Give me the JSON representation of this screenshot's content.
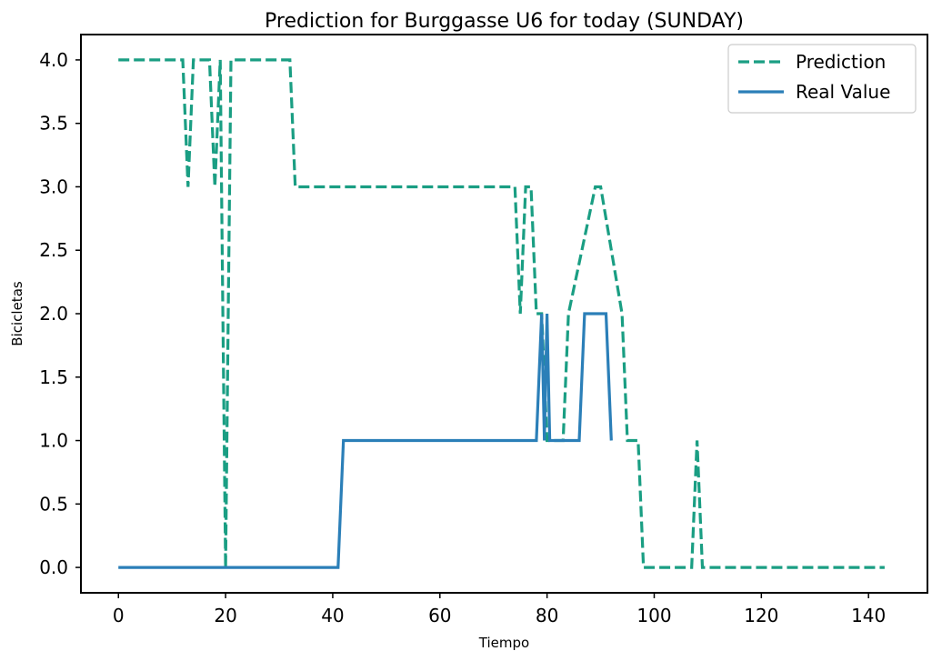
{
  "chart_data": {
    "type": "line",
    "title": "Prediction for Burggasse U6 for today (SUNDAY)",
    "xlabel": "Tiempo",
    "ylabel": "Bicicletas",
    "xlim": [
      -7,
      151
    ],
    "ylim": [
      -0.2,
      4.2
    ],
    "xticks": [
      0,
      20,
      40,
      60,
      80,
      100,
      120,
      140
    ],
    "yticks": [
      0.0,
      0.5,
      1.0,
      1.5,
      2.0,
      2.5,
      3.0,
      3.5,
      4.0
    ],
    "grid": false,
    "legend": "top-right",
    "series": [
      {
        "name": "Prediction",
        "color": "#1a9e83",
        "style": "dashed",
        "x": [
          0,
          12,
          13,
          14,
          17,
          18,
          19,
          19.5,
          20,
          20.5,
          21,
          32,
          33,
          74,
          75,
          76,
          77,
          78,
          79,
          80,
          83,
          84,
          89,
          90,
          94,
          95,
          96,
          97,
          98,
          107,
          108,
          109,
          143
        ],
        "y": [
          4,
          4,
          3,
          4,
          4,
          3,
          4,
          2,
          0,
          2,
          4,
          4,
          3,
          3,
          2,
          3,
          3,
          2,
          2,
          1,
          1,
          2,
          3,
          3,
          2,
          1,
          1,
          1,
          0,
          0,
          1,
          0,
          0
        ]
      },
      {
        "name": "Real Value",
        "color": "#2b7fb8",
        "style": "solid",
        "x": [
          0,
          41,
          42,
          78,
          79,
          79.5,
          80,
          80.5,
          86,
          87,
          91,
          92
        ],
        "y": [
          0,
          0,
          1,
          1,
          2,
          1,
          2,
          1,
          1,
          2,
          2,
          1
        ]
      }
    ]
  }
}
